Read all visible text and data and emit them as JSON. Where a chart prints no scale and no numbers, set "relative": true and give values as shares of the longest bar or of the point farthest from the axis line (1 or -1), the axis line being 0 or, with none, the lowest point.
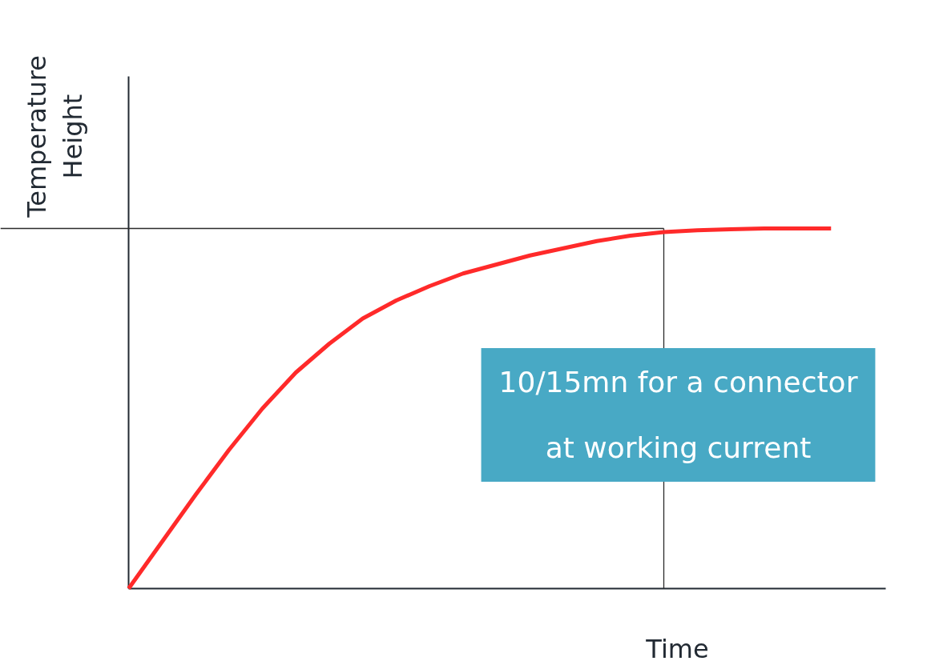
{
  "chart_data": {
    "type": "line",
    "relative": true,
    "xlabel": "Time",
    "ylabel": "Temperature\nHeight",
    "categories": [
      null,
      null,
      null,
      null,
      null,
      null,
      null,
      null,
      null,
      null,
      null,
      null,
      null,
      null,
      null,
      null,
      null,
      null,
      null,
      null,
      null,
      null
    ],
    "series": [
      {
        "color": "#ff2a2a",
        "values": [
          0,
          0.13,
          0.26,
          0.385,
          0.5,
          0.6,
          0.68,
          0.75,
          0.8,
          0.84,
          0.875,
          0.9,
          0.925,
          0.945,
          0.965,
          0.98,
          0.99,
          0.995,
          0.998,
          1,
          1,
          1
        ]
      }
    ],
    "ref_lines": [
      {
        "axis": "y",
        "value": 1,
        "color": "#2b2b2b"
      }
    ],
    "annotations": [
      "10/15mn for a connector at working current"
    ],
    "grid": false,
    "marker": "none",
    "line_style": "solid"
  }
}
